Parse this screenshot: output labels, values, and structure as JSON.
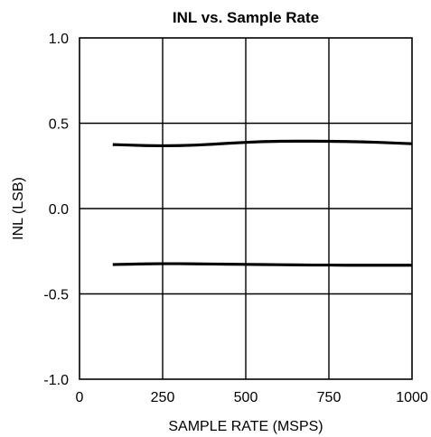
{
  "chart_data": {
    "type": "line",
    "title": "INL vs. Sample Rate",
    "xlabel": "SAMPLE RATE (MSPS)",
    "ylabel": "INL (LSB)",
    "xlim": [
      0,
      1000
    ],
    "ylim": [
      -1.0,
      1.0
    ],
    "xticks": [
      0,
      250,
      500,
      750,
      1000
    ],
    "xtick_labels": [
      "0",
      "250",
      "500",
      "750",
      "1000"
    ],
    "yticks": [
      1.0,
      0.5,
      0.0,
      -0.5,
      -1.0
    ],
    "ytick_labels": [
      "1.0",
      "0.5",
      "0.0",
      "-0.5",
      "-1.0"
    ],
    "grid": true,
    "series": [
      {
        "x": [
          100,
          150,
          200,
          250,
          300,
          350,
          400,
          450,
          500,
          550,
          600,
          650,
          700,
          750,
          800,
          850,
          900,
          950,
          1000
        ],
        "values": [
          0.375,
          0.372,
          0.369,
          0.368,
          0.369,
          0.372,
          0.377,
          0.383,
          0.388,
          0.392,
          0.394,
          0.395,
          0.395,
          0.394,
          0.393,
          0.391,
          0.388,
          0.384,
          0.38
        ]
      },
      {
        "x": [
          100,
          150,
          200,
          250,
          300,
          350,
          400,
          450,
          500,
          550,
          600,
          650,
          700,
          750,
          800,
          850,
          900,
          950,
          1000
        ],
        "values": [
          -0.328,
          -0.326,
          -0.324,
          -0.323,
          -0.323,
          -0.324,
          -0.325,
          -0.326,
          -0.327,
          -0.328,
          -0.329,
          -0.33,
          -0.331,
          -0.331,
          -0.332,
          -0.332,
          -0.332,
          -0.332,
          -0.332
        ]
      }
    ]
  }
}
